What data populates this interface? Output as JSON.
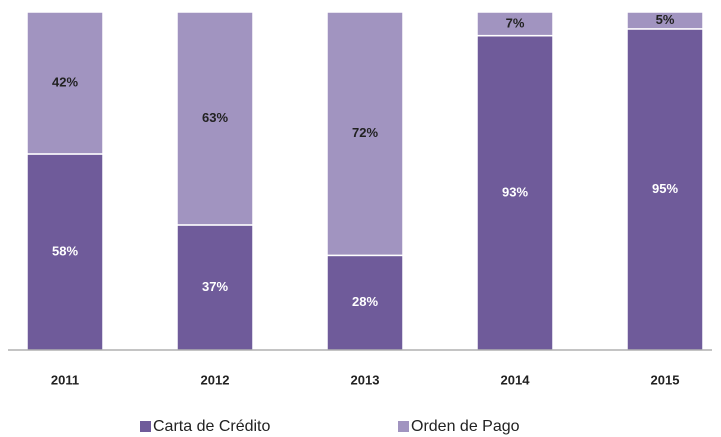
{
  "chart_data": {
    "type": "stacked_bar",
    "categories": [
      "2011",
      "2012",
      "2013",
      "2014",
      "2015"
    ],
    "series": [
      {
        "name": "Carta de Crédito",
        "color": "#6f5b9a",
        "values": [
          58,
          37,
          28,
          93,
          95
        ],
        "value_labels": [
          "58%",
          "37%",
          "28%",
          "93%",
          "95%"
        ]
      },
      {
        "name": "Orden de Pago",
        "color": "#a194c0",
        "values": [
          42,
          63,
          72,
          7,
          5
        ],
        "value_labels": [
          "42%",
          "63%",
          "72%",
          "7%",
          "5%"
        ]
      }
    ],
    "ylim": [
      0,
      100
    ],
    "legend": "bottom"
  }
}
